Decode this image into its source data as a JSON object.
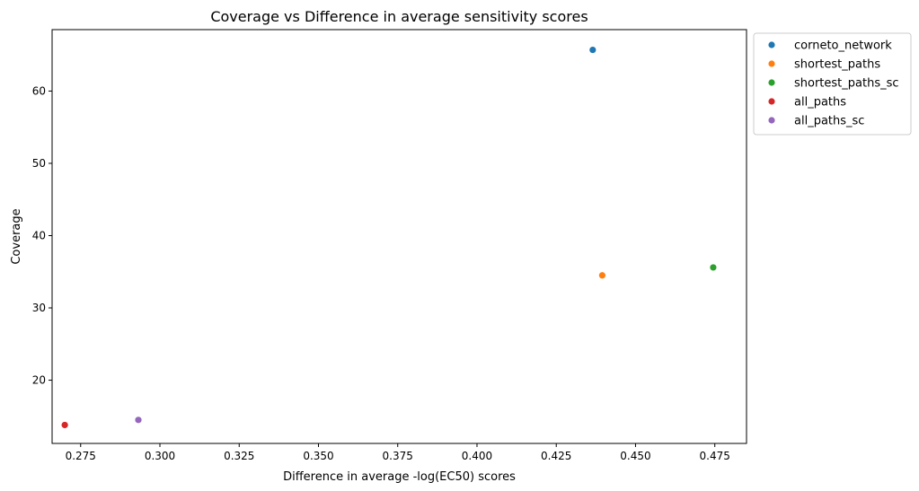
{
  "chart_data": {
    "type": "scatter",
    "title": "Coverage vs Difference in average sensitivity scores",
    "xlabel": "Difference in average -log(EC50) scores",
    "ylabel": "Coverage",
    "xlim": [
      0.266,
      0.485
    ],
    "ylim": [
      11.25,
      68.5
    ],
    "xticks": [
      0.275,
      0.3,
      0.325,
      0.35,
      0.375,
      0.4,
      0.425,
      0.45,
      0.475
    ],
    "xtick_labels": [
      "0.275",
      "0.300",
      "0.325",
      "0.350",
      "0.375",
      "0.400",
      "0.425",
      "0.450",
      "0.475"
    ],
    "yticks": [
      20,
      30,
      40,
      50,
      60
    ],
    "ytick_labels": [
      "20",
      "30",
      "40",
      "50",
      "60"
    ],
    "grid": false,
    "legend_position": "outside-top-right",
    "series": [
      {
        "name": "corneto_network",
        "color": "#1f77b4",
        "points": [
          [
            0.4365,
            65.7
          ]
        ]
      },
      {
        "name": "shortest_paths",
        "color": "#ff7f0e",
        "points": [
          [
            0.4395,
            34.5
          ]
        ]
      },
      {
        "name": "shortest_paths_sc",
        "color": "#2ca02c",
        "points": [
          [
            0.4745,
            35.6
          ]
        ]
      },
      {
        "name": "all_paths",
        "color": "#d62728",
        "points": [
          [
            0.27,
            13.8
          ]
        ]
      },
      {
        "name": "all_paths_sc",
        "color": "#9467bd",
        "points": [
          [
            0.2932,
            14.5
          ]
        ]
      }
    ]
  }
}
